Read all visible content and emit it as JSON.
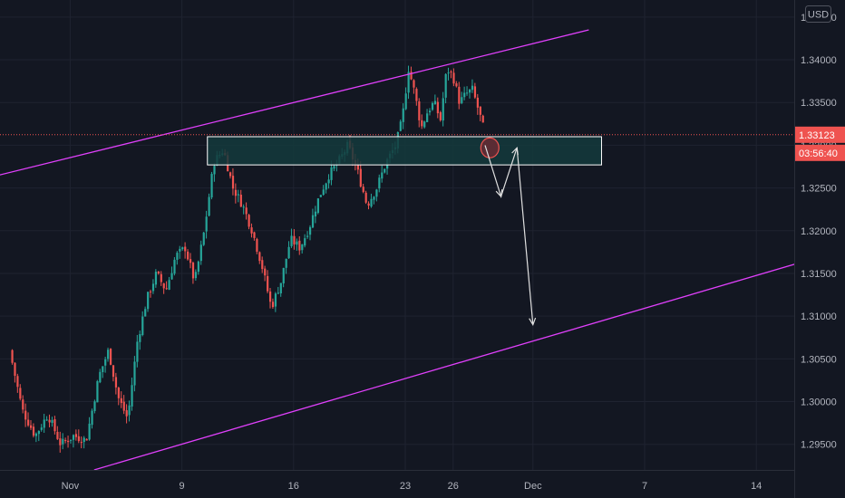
{
  "chart_data": {
    "type": "candlestick",
    "currency_label": "USD",
    "colors": {
      "background": "#131722",
      "up": "#26a69a",
      "down": "#ef5350",
      "channel": "#e040fb",
      "zone_fill": "#143a3c",
      "zone_border": "#ffffff",
      "arrow": "#e0e0e0",
      "price_badge": "#ef5350",
      "axis_text": "#b2b5be"
    },
    "y_axis": {
      "min": 1.292,
      "max": 1.347,
      "ticks": [
        "1.34500",
        "1.34000",
        "1.33500",
        "1.33000",
        "1.32500",
        "1.32000",
        "1.31500",
        "1.31000",
        "1.30500",
        "1.30000",
        "1.29500"
      ]
    },
    "x_axis": {
      "ticks": [
        {
          "label": "Nov",
          "day": 2
        },
        {
          "label": "9",
          "day": 9
        },
        {
          "label": "16",
          "day": 16
        },
        {
          "label": "23",
          "day": 23
        },
        {
          "label": "26",
          "day": 26
        },
        {
          "label": "Dec",
          "day": 31
        },
        {
          "label": "7",
          "day": 38
        },
        {
          "label": "14",
          "day": 45
        }
      ]
    },
    "current_price": "1.33123",
    "countdown": "03:56:40",
    "close_path": [
      [
        -1.8,
        1.306
      ],
      [
        -1.0,
        1.299
      ],
      [
        -0.2,
        1.296
      ],
      [
        0.6,
        1.2985
      ],
      [
        1.4,
        1.295
      ],
      [
        2.2,
        1.296
      ],
      [
        3.0,
        1.2955
      ],
      [
        3.8,
        1.303
      ],
      [
        4.4,
        1.306
      ],
      [
        5.0,
        1.3005
      ],
      [
        5.6,
        1.298
      ],
      [
        6.2,
        1.307
      ],
      [
        6.8,
        1.312
      ],
      [
        7.4,
        1.315
      ],
      [
        8.0,
        1.313
      ],
      [
        8.6,
        1.317
      ],
      [
        9.2,
        1.318
      ],
      [
        9.8,
        1.314
      ],
      [
        10.4,
        1.32
      ],
      [
        11.0,
        1.328
      ],
      [
        11.6,
        1.3295
      ],
      [
        12.2,
        1.325
      ],
      [
        12.8,
        1.323
      ],
      [
        13.4,
        1.32
      ],
      [
        14.0,
        1.316
      ],
      [
        14.6,
        1.311
      ],
      [
        15.2,
        1.314
      ],
      [
        15.8,
        1.319
      ],
      [
        16.4,
        1.318
      ],
      [
        17.0,
        1.3205
      ],
      [
        17.6,
        1.324
      ],
      [
        18.2,
        1.3265
      ],
      [
        18.8,
        1.328
      ],
      [
        19.4,
        1.33
      ],
      [
        20.0,
        1.327
      ],
      [
        20.6,
        1.323
      ],
      [
        21.2,
        1.325
      ],
      [
        21.8,
        1.328
      ],
      [
        22.4,
        1.33
      ],
      [
        22.8,
        1.333
      ],
      [
        23.2,
        1.339
      ],
      [
        23.6,
        1.336
      ],
      [
        24.0,
        1.332
      ],
      [
        24.4,
        1.334
      ],
      [
        24.8,
        1.335
      ],
      [
        25.2,
        1.333
      ],
      [
        25.6,
        1.339
      ],
      [
        26.0,
        1.338
      ],
      [
        26.4,
        1.335
      ],
      [
        26.8,
        1.336
      ],
      [
        27.2,
        1.3365
      ],
      [
        27.6,
        1.334
      ],
      [
        28.0,
        1.3312
      ]
    ],
    "channel_upper": [
      [
        -9,
        1.3235
      ],
      [
        34.5,
        1.3435
      ]
    ],
    "channel_lower": [
      [
        3.5,
        1.292
      ],
      [
        50,
        1.3175
      ]
    ],
    "zone": {
      "x1": 10.6,
      "x2": 35.3,
      "y_top": 1.331,
      "y_bottom": 1.3277
    },
    "circle": {
      "x": 28.3,
      "y": 1.3297
    },
    "arrows": [
      [
        [
          28.0,
          1.33
        ],
        [
          29.0,
          1.324
        ],
        [
          30.0,
          1.3297
        ]
      ],
      [
        [
          30.0,
          1.3297
        ],
        [
          31.0,
          1.309
        ]
      ]
    ]
  }
}
